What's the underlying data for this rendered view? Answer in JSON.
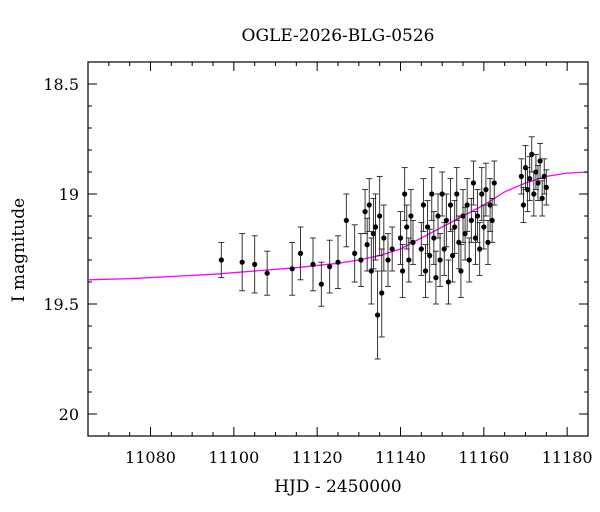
{
  "chart_data": {
    "type": "scatter",
    "title": "OGLE-2026-BLG-0526",
    "xlabel": "HJD - 2450000",
    "ylabel": "I magnitude",
    "xlim": [
      11065,
      11185
    ],
    "ylim": [
      20.1,
      18.4
    ],
    "y_inverted": true,
    "x_ticks": [
      11080,
      11100,
      11120,
      11140,
      11160,
      11180
    ],
    "x_tick_labels": [
      "11080",
      "11100",
      "11120",
      "11140",
      "11160",
      "11180"
    ],
    "y_ticks": [
      18.5,
      19,
      19.5,
      20
    ],
    "y_tick_labels": [
      "18.5",
      "19",
      "19.5",
      "20"
    ],
    "grid": false,
    "legend": "none",
    "colors": {
      "points": "#000000",
      "model": "#ff00ff",
      "frame": "#000000"
    },
    "series": [
      {
        "kind": "points_with_errorbars",
        "x": [
          11097,
          11102,
          11105,
          11108,
          11114,
          11116,
          11119,
          11121,
          11123,
          11125,
          11127,
          11129,
          11130.5,
          11131.5,
          11132,
          11132.5,
          11133,
          11133.5,
          11134,
          11134.5,
          11135,
          11135.5,
          11136,
          11137,
          11138,
          11140,
          11140.5,
          11141,
          11141.5,
          11142,
          11142.5,
          11143,
          11145,
          11145.5,
          11146,
          11146.5,
          11147,
          11147.5,
          11148,
          11148.5,
          11149,
          11149.5,
          11150,
          11150.5,
          11151,
          11151.5,
          11152,
          11152.5,
          11153,
          11153.5,
          11154,
          11154.5,
          11155,
          11155.5,
          11156,
          11156.5,
          11157,
          11157.5,
          11158,
          11158.5,
          11159,
          11159.5,
          11160,
          11160.5,
          11161,
          11161.5,
          11162,
          11162.5,
          11169,
          11169.5,
          11170,
          11170.5,
          11171,
          11171.5,
          11172,
          11172.5,
          11173,
          11173.5,
          11174,
          11174.5,
          11175
        ],
        "y": [
          19.3,
          19.31,
          19.32,
          19.36,
          19.34,
          19.27,
          19.32,
          19.41,
          19.33,
          19.31,
          19.12,
          19.27,
          19.3,
          19.08,
          19.23,
          19.05,
          19.35,
          19.18,
          19.15,
          19.55,
          19.1,
          19.45,
          19.2,
          19.3,
          19.25,
          19.2,
          19.35,
          19.0,
          19.15,
          19.3,
          19.1,
          19.22,
          19.25,
          19.05,
          19.35,
          19.15,
          19.28,
          19.0,
          19.2,
          19.38,
          19.1,
          19.3,
          19.0,
          19.25,
          19.12,
          19.4,
          19.05,
          19.28,
          19.15,
          19.0,
          19.22,
          19.35,
          19.1,
          19.18,
          19.05,
          19.3,
          19.12,
          18.95,
          19.2,
          19.1,
          19.25,
          19.0,
          19.15,
          18.98,
          19.22,
          19.05,
          19.12,
          18.95,
          18.92,
          19.05,
          18.88,
          18.98,
          18.93,
          18.82,
          19.0,
          18.9,
          18.95,
          18.85,
          19.02,
          18.92,
          18.97
        ],
        "err": [
          0.08,
          0.13,
          0.13,
          0.1,
          0.12,
          0.12,
          0.12,
          0.1,
          0.12,
          0.12,
          0.12,
          0.13,
          0.12,
          0.1,
          0.12,
          0.12,
          0.15,
          0.16,
          0.15,
          0.2,
          0.18,
          0.2,
          0.15,
          0.12,
          0.1,
          0.12,
          0.12,
          0.12,
          0.1,
          0.1,
          0.12,
          0.1,
          0.12,
          0.12,
          0.12,
          0.12,
          0.12,
          0.12,
          0.12,
          0.12,
          0.1,
          0.12,
          0.1,
          0.12,
          0.12,
          0.1,
          0.12,
          0.12,
          0.12,
          0.12,
          0.12,
          0.12,
          0.12,
          0.12,
          0.12,
          0.1,
          0.1,
          0.1,
          0.12,
          0.12,
          0.12,
          0.12,
          0.1,
          0.12,
          0.1,
          0.12,
          0.1,
          0.1,
          0.08,
          0.08,
          0.1,
          0.1,
          0.1,
          0.08,
          0.1,
          0.08,
          0.08,
          0.08,
          0.08,
          0.08,
          0.08
        ]
      },
      {
        "kind": "model_curve",
        "x": [
          11065,
          11075,
          11085,
          11095,
          11105,
          11115,
          11125,
          11130,
          11135,
          11140,
          11145,
          11150,
          11155,
          11160,
          11165,
          11170,
          11175,
          11180,
          11185
        ],
        "y": [
          19.39,
          19.385,
          19.375,
          19.365,
          19.35,
          19.335,
          19.315,
          19.3,
          19.28,
          19.25,
          19.2,
          19.15,
          19.1,
          19.05,
          18.99,
          18.95,
          18.92,
          18.905,
          18.9
        ]
      }
    ]
  }
}
